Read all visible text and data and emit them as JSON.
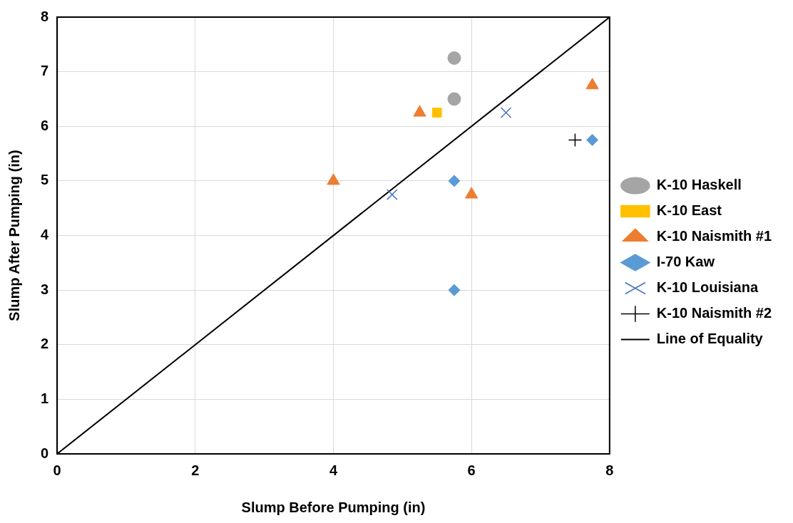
{
  "chart_data": {
    "type": "scatter",
    "xlabel": "Slump Before Pumping (in)",
    "ylabel": "Slump After Pumping (in)",
    "xlim": [
      0,
      8
    ],
    "xticks": [
      0,
      2,
      4,
      6,
      8
    ],
    "ylim": [
      0,
      8
    ],
    "yticks": [
      0,
      1,
      2,
      3,
      4,
      5,
      6,
      7,
      8
    ],
    "grid": true,
    "legend": "right",
    "series": [
      {
        "name": "K-10 Haskell",
        "color": "#a5a5a5",
        "marker": "circle",
        "x": [
          5.75,
          5.75
        ],
        "values": [
          7.25,
          6.5
        ]
      },
      {
        "name": "K-10 East",
        "color": "#ffc000",
        "marker": "square",
        "x": [
          5.5
        ],
        "values": [
          6.25
        ]
      },
      {
        "name": "K-10 Naismith #1",
        "color": "#ed7d31",
        "marker": "triangle",
        "x": [
          5.25,
          4,
          6,
          7.75
        ],
        "values": [
          6.25,
          5,
          4.75,
          6.75
        ]
      },
      {
        "name": "I-70 Kaw",
        "color": "#5b9bd5",
        "marker": "diamond",
        "x": [
          5.75,
          5.75,
          7.75
        ],
        "values": [
          5,
          3,
          5.75
        ]
      },
      {
        "name": "K-10 Louisiana",
        "color": "#4472c4",
        "marker": "x",
        "x": [
          4.85,
          6.5
        ],
        "values": [
          4.75,
          6.25
        ]
      },
      {
        "name": "K-10 Naismith #2",
        "color": "#000000",
        "marker": "plus",
        "x": [
          7.5
        ],
        "values": [
          5.75
        ]
      },
      {
        "name": "Line of Equality",
        "type": "line",
        "color": "#000000",
        "marker": "none",
        "line_style": "solid",
        "x": [
          0,
          8
        ],
        "values": [
          0,
          8
        ]
      }
    ]
  }
}
